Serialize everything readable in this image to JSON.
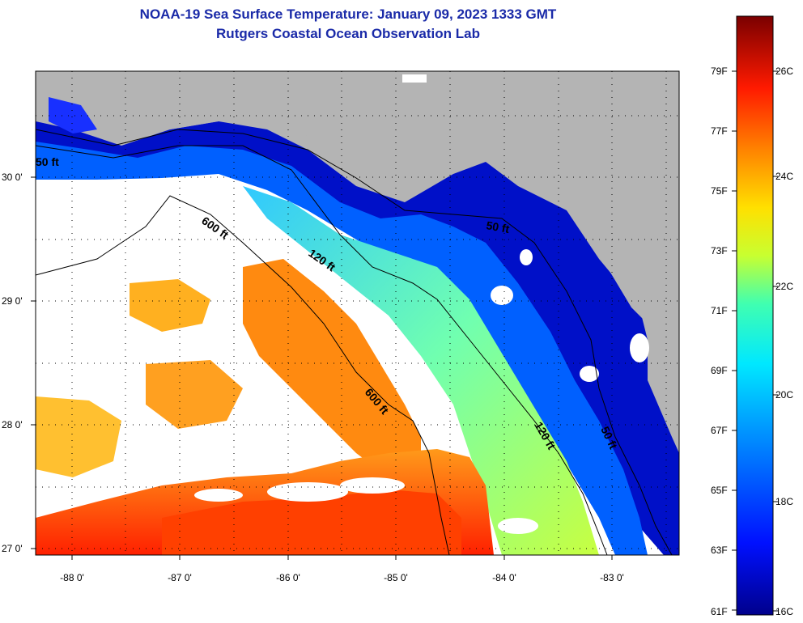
{
  "title": {
    "line1": "NOAA-19 Sea Surface Temperature:  January 09, 2023 1333 GMT",
    "line2": "Rutgers Coastal Ocean Observation Lab"
  },
  "map": {
    "lon_ticks": [
      "-88 0'",
      "-87 0'",
      "-86 0'",
      "-85 0'",
      "-84 0'",
      "-83 0'"
    ],
    "lat_ticks": [
      "30 0'",
      "29 0'",
      "28 0'",
      "27 0'"
    ],
    "contours": [
      "50 ft",
      "120 ft",
      "600 ft",
      "600 ft",
      "120 ft",
      "50 ft",
      "50 ft"
    ]
  },
  "colorbar": {
    "fahrenheit": [
      "79F",
      "77F",
      "75F",
      "73F",
      "71F",
      "69F",
      "67F",
      "65F",
      "63F",
      "61F"
    ],
    "celsius": [
      "26C",
      "24C",
      "22C",
      "20C",
      "18C",
      "16C"
    ]
  },
  "colors": {
    "title": "#1a2aa8",
    "land": "#b4b4b4",
    "cloud": "#ffffff"
  }
}
